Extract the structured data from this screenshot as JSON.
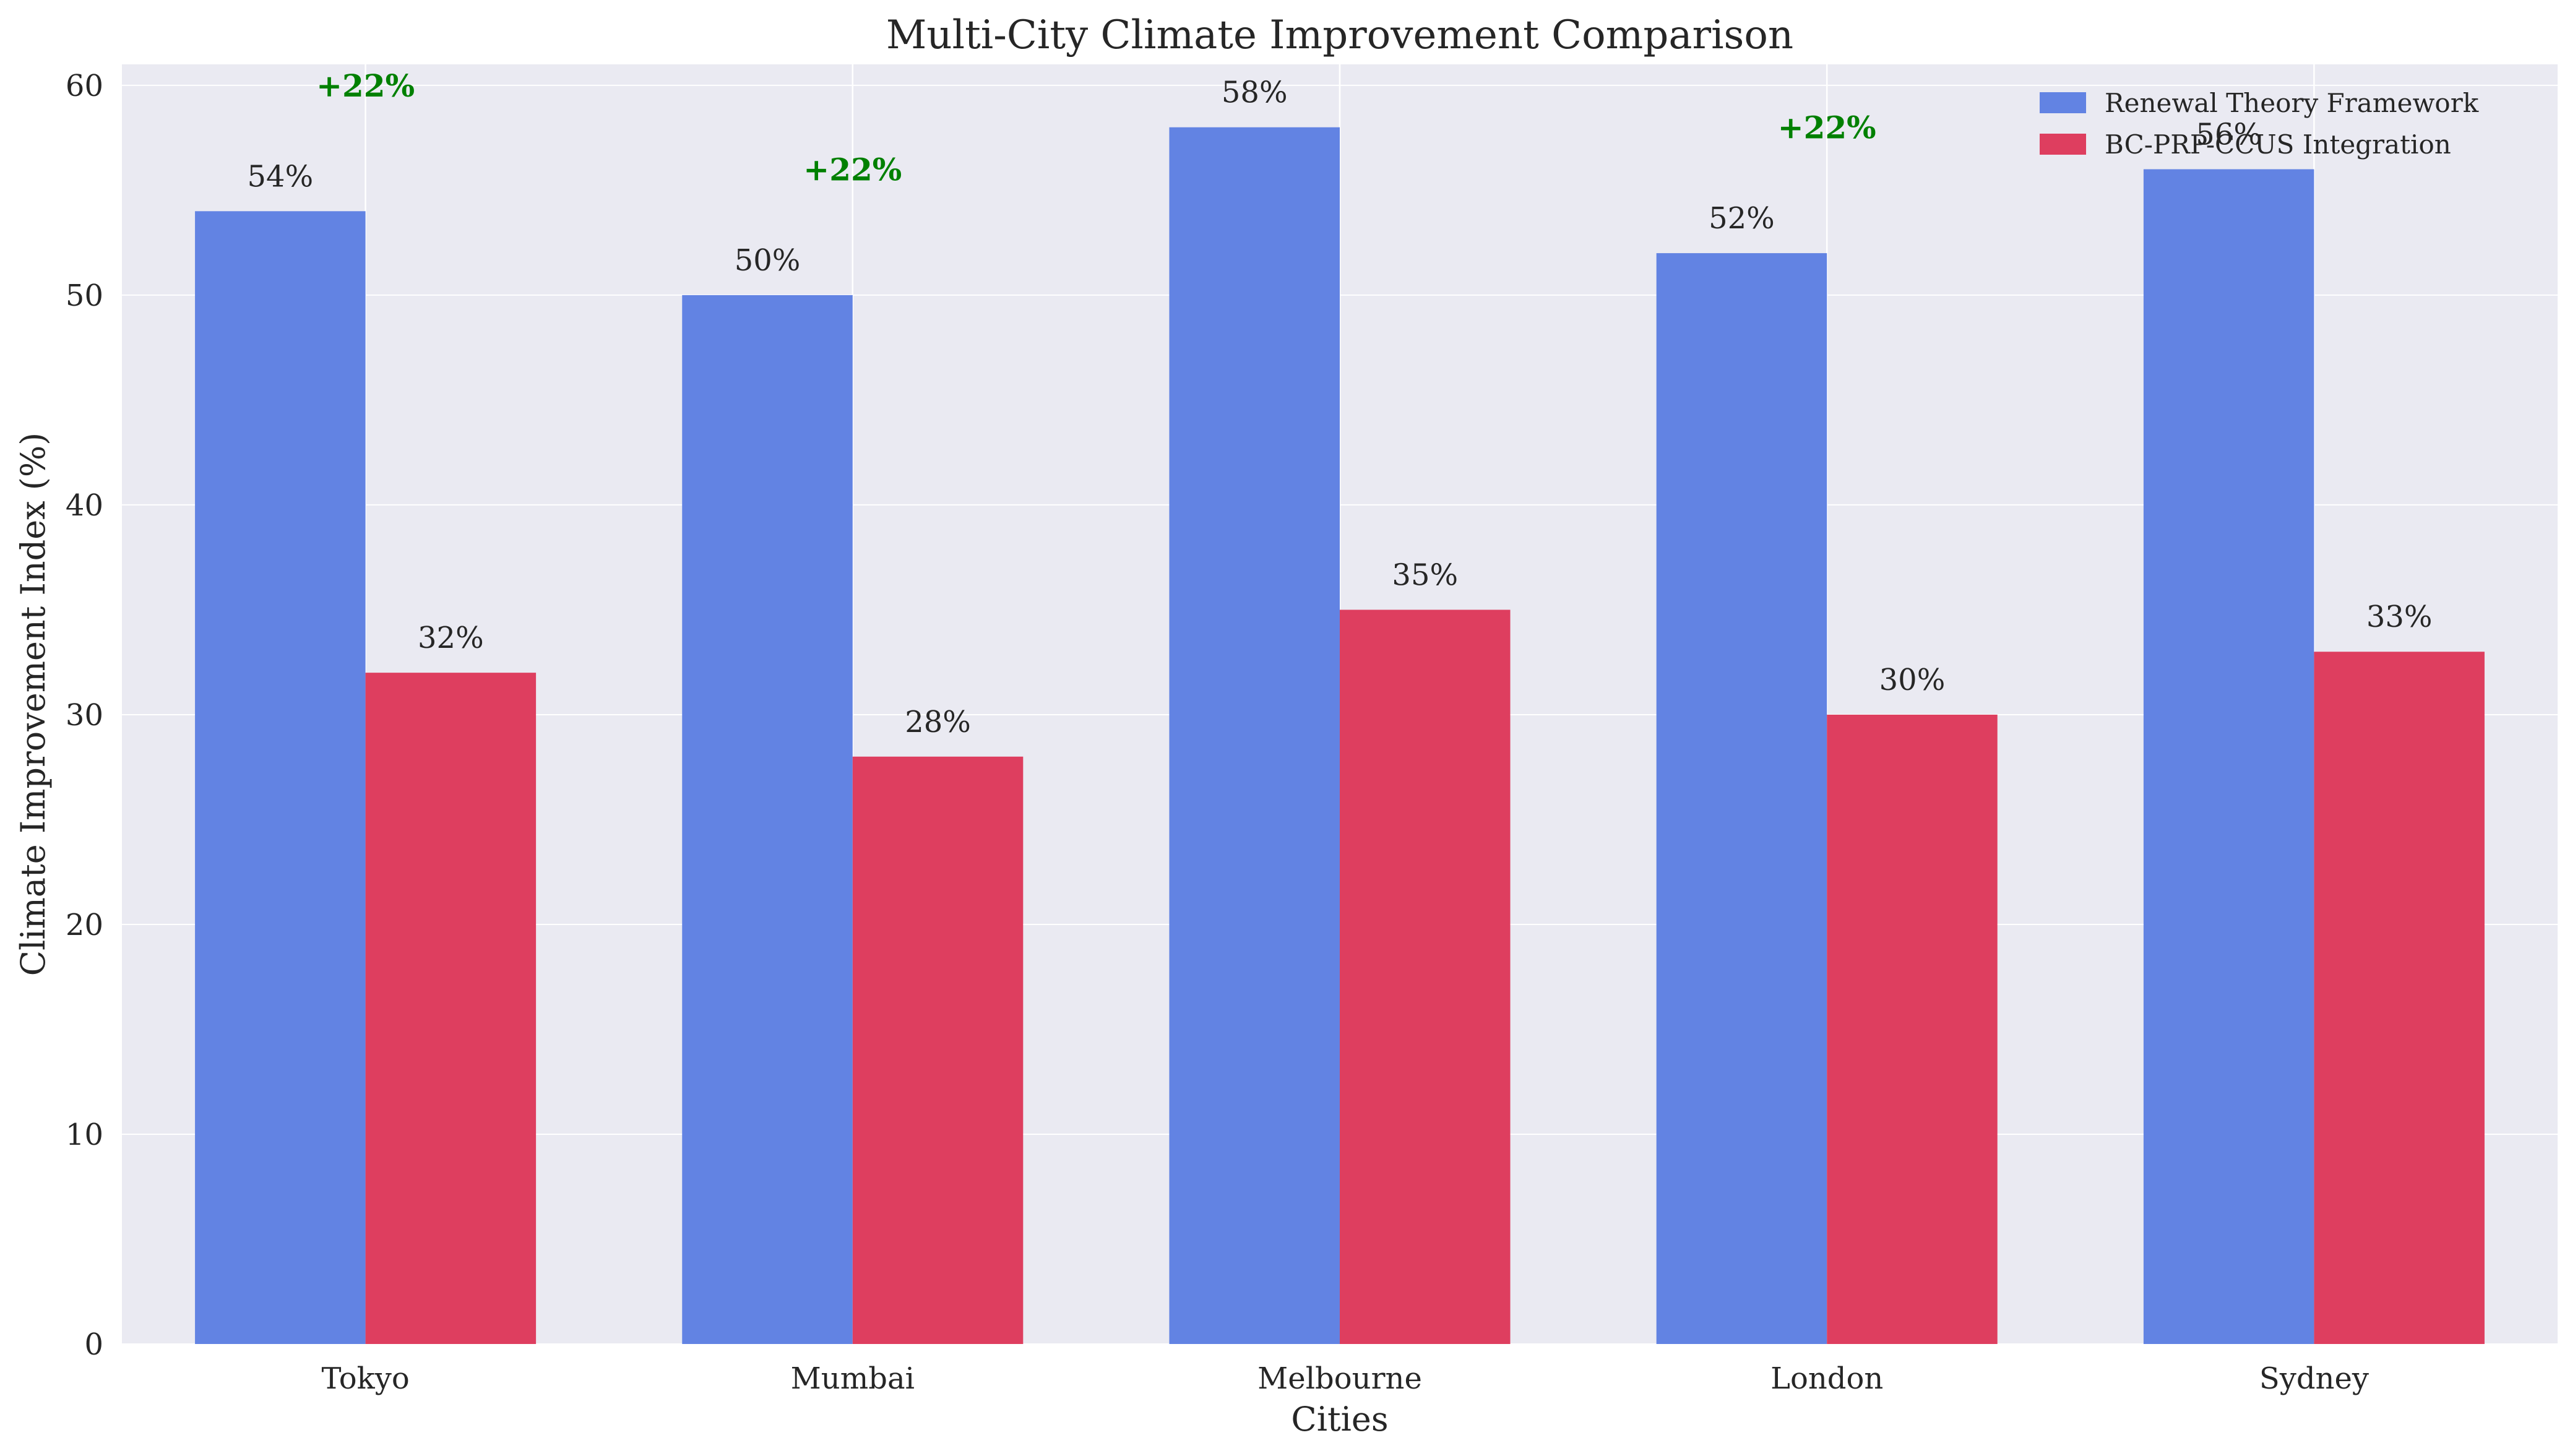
{
  "chart_data": {
    "type": "bar",
    "title": "Multi-City Climate Improvement Comparison",
    "xlabel": "Cities",
    "ylabel": "Climate Improvement Index (%)",
    "categories": [
      "Tokyo",
      "Mumbai",
      "Melbourne",
      "London",
      "Sydney"
    ],
    "series": [
      {
        "name": "Renewal Theory Framework",
        "values": [
          54,
          50,
          58,
          52,
          56
        ],
        "color": "#6283e3"
      },
      {
        "name": "BC-PRP-CCUS Integration",
        "values": [
          32,
          28,
          35,
          30,
          33
        ],
        "color": "#de3e5f"
      }
    ],
    "value_labels": {
      "series_0": [
        "54%",
        "50%",
        "58%",
        "52%",
        "56%"
      ],
      "series_1": [
        "32%",
        "28%",
        "35%",
        "30%",
        "33%"
      ]
    },
    "annotations": [
      {
        "category": "Tokyo",
        "text": "+22%",
        "y": 60
      },
      {
        "category": "Mumbai",
        "text": "+22%",
        "y": 56
      },
      {
        "category": "London",
        "text": "+22%",
        "y": 58
      }
    ],
    "annotation_color": "#008000",
    "ylim": [
      0,
      61
    ],
    "yticks": [
      0,
      10,
      20,
      30,
      40,
      50,
      60
    ],
    "grid": true,
    "legend_position": "upper-right",
    "background_color": "#eaeaf2"
  }
}
